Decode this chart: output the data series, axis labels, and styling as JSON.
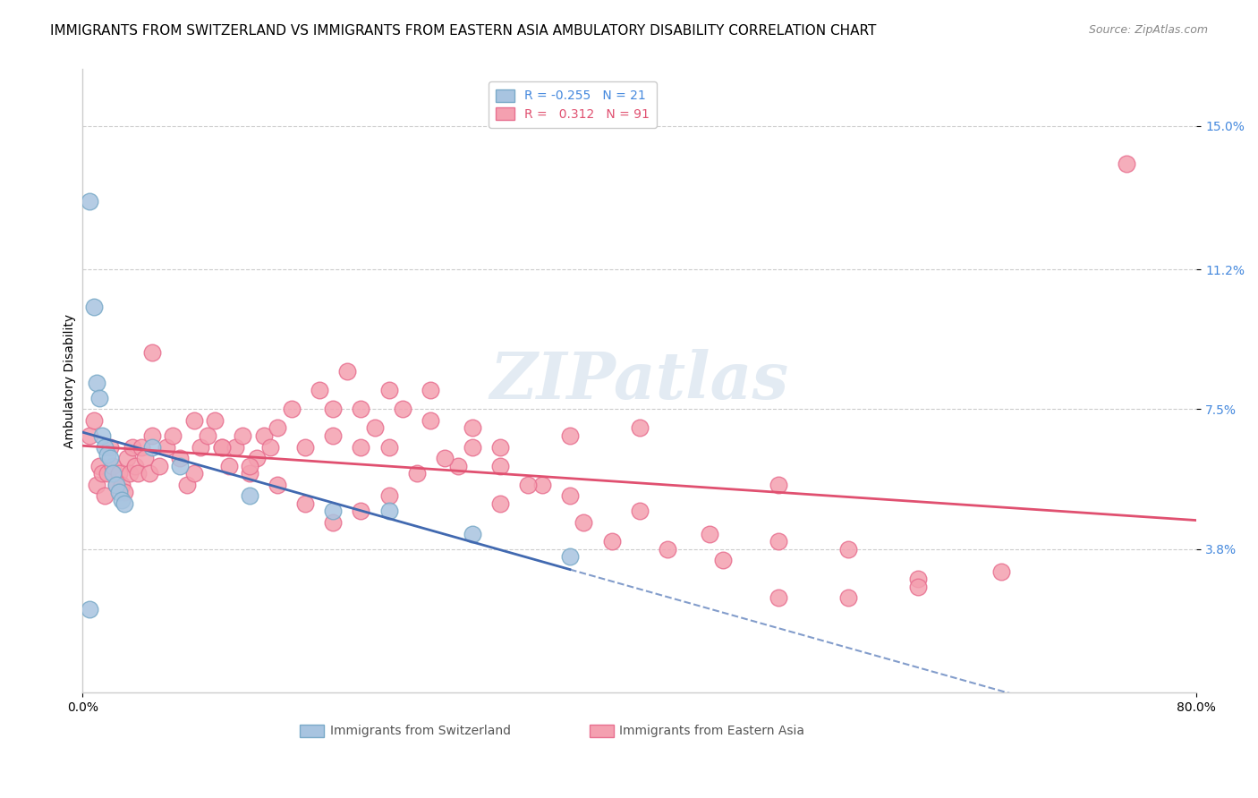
{
  "title": "IMMIGRANTS FROM SWITZERLAND VS IMMIGRANTS FROM EASTERN ASIA AMBULATORY DISABILITY CORRELATION CHART",
  "source": "Source: ZipAtlas.com",
  "ylabel": "Ambulatory Disability",
  "ytick_labels": [
    "3.8%",
    "7.5%",
    "11.2%",
    "15.0%"
  ],
  "ytick_values": [
    0.038,
    0.075,
    0.112,
    0.15
  ],
  "xmin": 0.0,
  "xmax": 0.8,
  "ymin": 0.0,
  "ymax": 0.165,
  "legend_blue_R": "-0.255",
  "legend_blue_N": "21",
  "legend_pink_R": "0.312",
  "legend_pink_N": "91",
  "blue_color": "#a8c4e0",
  "pink_color": "#f4a0b0",
  "blue_edge": "#7aaac8",
  "pink_edge": "#e87090",
  "blue_line_color": "#4169b0",
  "pink_line_color": "#e05070",
  "blue_scatter_x": [
    0.005,
    0.008,
    0.01,
    0.012,
    0.014,
    0.016,
    0.018,
    0.02,
    0.022,
    0.024,
    0.026,
    0.028,
    0.03,
    0.05,
    0.07,
    0.12,
    0.18,
    0.22,
    0.28,
    0.35,
    0.005
  ],
  "blue_scatter_y": [
    0.13,
    0.102,
    0.082,
    0.078,
    0.068,
    0.065,
    0.063,
    0.062,
    0.058,
    0.055,
    0.053,
    0.051,
    0.05,
    0.065,
    0.06,
    0.052,
    0.048,
    0.048,
    0.042,
    0.036,
    0.022
  ],
  "pink_scatter_x": [
    0.005,
    0.008,
    0.01,
    0.012,
    0.014,
    0.016,
    0.018,
    0.02,
    0.022,
    0.024,
    0.026,
    0.028,
    0.03,
    0.032,
    0.034,
    0.036,
    0.038,
    0.04,
    0.042,
    0.045,
    0.048,
    0.05,
    0.055,
    0.06,
    0.065,
    0.07,
    0.075,
    0.08,
    0.085,
    0.09,
    0.095,
    0.1,
    0.105,
    0.11,
    0.115,
    0.12,
    0.125,
    0.13,
    0.135,
    0.14,
    0.15,
    0.16,
    0.17,
    0.18,
    0.19,
    0.2,
    0.21,
    0.22,
    0.23,
    0.25,
    0.27,
    0.3,
    0.33,
    0.36,
    0.4,
    0.45,
    0.5,
    0.55,
    0.6,
    0.75,
    0.18,
    0.2,
    0.22,
    0.25,
    0.28,
    0.3,
    0.35,
    0.4,
    0.5,
    0.05,
    0.08,
    0.1,
    0.12,
    0.14,
    0.16,
    0.18,
    0.2,
    0.22,
    0.24,
    0.26,
    0.28,
    0.3,
    0.32,
    0.35,
    0.38,
    0.42,
    0.46,
    0.5,
    0.55,
    0.6,
    0.66
  ],
  "pink_scatter_y": [
    0.068,
    0.072,
    0.055,
    0.06,
    0.058,
    0.052,
    0.058,
    0.065,
    0.06,
    0.055,
    0.058,
    0.055,
    0.053,
    0.062,
    0.058,
    0.065,
    0.06,
    0.058,
    0.065,
    0.062,
    0.058,
    0.068,
    0.06,
    0.065,
    0.068,
    0.062,
    0.055,
    0.058,
    0.065,
    0.068,
    0.072,
    0.065,
    0.06,
    0.065,
    0.068,
    0.058,
    0.062,
    0.068,
    0.065,
    0.07,
    0.075,
    0.065,
    0.08,
    0.075,
    0.085,
    0.065,
    0.07,
    0.065,
    0.075,
    0.08,
    0.06,
    0.05,
    0.055,
    0.045,
    0.048,
    0.042,
    0.04,
    0.038,
    0.03,
    0.14,
    0.068,
    0.075,
    0.08,
    0.072,
    0.07,
    0.065,
    0.068,
    0.07,
    0.055,
    0.09,
    0.072,
    0.065,
    0.06,
    0.055,
    0.05,
    0.045,
    0.048,
    0.052,
    0.058,
    0.062,
    0.065,
    0.06,
    0.055,
    0.052,
    0.04,
    0.038,
    0.035,
    0.025,
    0.025,
    0.028,
    0.032
  ],
  "watermark": "ZIPatlas",
  "title_fontsize": 11,
  "source_fontsize": 9,
  "axis_label_fontsize": 10,
  "tick_fontsize": 10,
  "legend_fontsize": 10
}
